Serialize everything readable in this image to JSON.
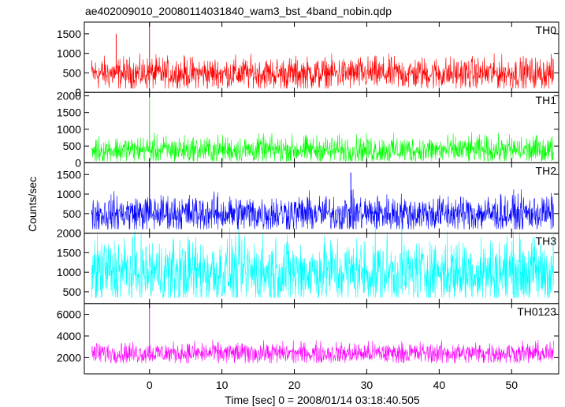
{
  "title": "ae402009010_20080114031840_wam3_bst_4band_nobin.qdp",
  "chart_data": {
    "type": "line",
    "title": "ae402009010_20080114031840_wam3_bst_4band_nobin.qdp",
    "xlabel": "Time [sec] 0 = 2008/01/14 03:18:40.505",
    "ylabel": "Counts/sec",
    "xlim": [
      -9,
      56.5
    ],
    "x_ticks": [
      0,
      10,
      20,
      30,
      40,
      50
    ],
    "x_range": [
      -8,
      55.8
    ],
    "grid": false,
    "legend": "none",
    "panels": [
      {
        "name": "TH0",
        "color": "#ff0000",
        "ylim": [
          0,
          1800
        ],
        "y_ticks": [
          0,
          500,
          1000,
          1500
        ],
        "typical_range": [
          100,
          850
        ],
        "mean": 480,
        "peaks": [
          {
            "x": 0.0,
            "y": 1800
          },
          {
            "x": -4.6,
            "y": 1500
          }
        ]
      },
      {
        "name": "TH1",
        "color": "#00ff00",
        "ylim": [
          0,
          2100
        ],
        "y_ticks": [
          0,
          500,
          1000,
          1500,
          2000
        ],
        "typical_range": [
          50,
          800
        ],
        "mean": 380,
        "peaks": [
          {
            "x": 0.0,
            "y": 2100
          }
        ]
      },
      {
        "name": "TH2",
        "color": "#0000ff",
        "ylim": [
          0,
          1800
        ],
        "y_ticks": [
          0,
          500,
          1000,
          1500
        ],
        "typical_range": [
          100,
          950
        ],
        "mean": 500,
        "peaks": [
          {
            "x": 0.0,
            "y": 1800
          },
          {
            "x": 27.8,
            "y": 1550
          }
        ]
      },
      {
        "name": "TH3",
        "color": "#00ffff",
        "ylim": [
          200,
          2000
        ],
        "y_ticks": [
          500,
          1000,
          1500,
          2000
        ],
        "typical_range": [
          350,
          1950
        ],
        "mean": 1000,
        "peaks": []
      },
      {
        "name": "TH0123",
        "color": "#ff00ff",
        "ylim": [
          500,
          7000
        ],
        "y_ticks": [
          2000,
          4000,
          6000
        ],
        "typical_range": [
          1500,
          3300
        ],
        "mean": 2400,
        "peaks": [
          {
            "x": 0.0,
            "y": 7000
          }
        ]
      }
    ]
  }
}
